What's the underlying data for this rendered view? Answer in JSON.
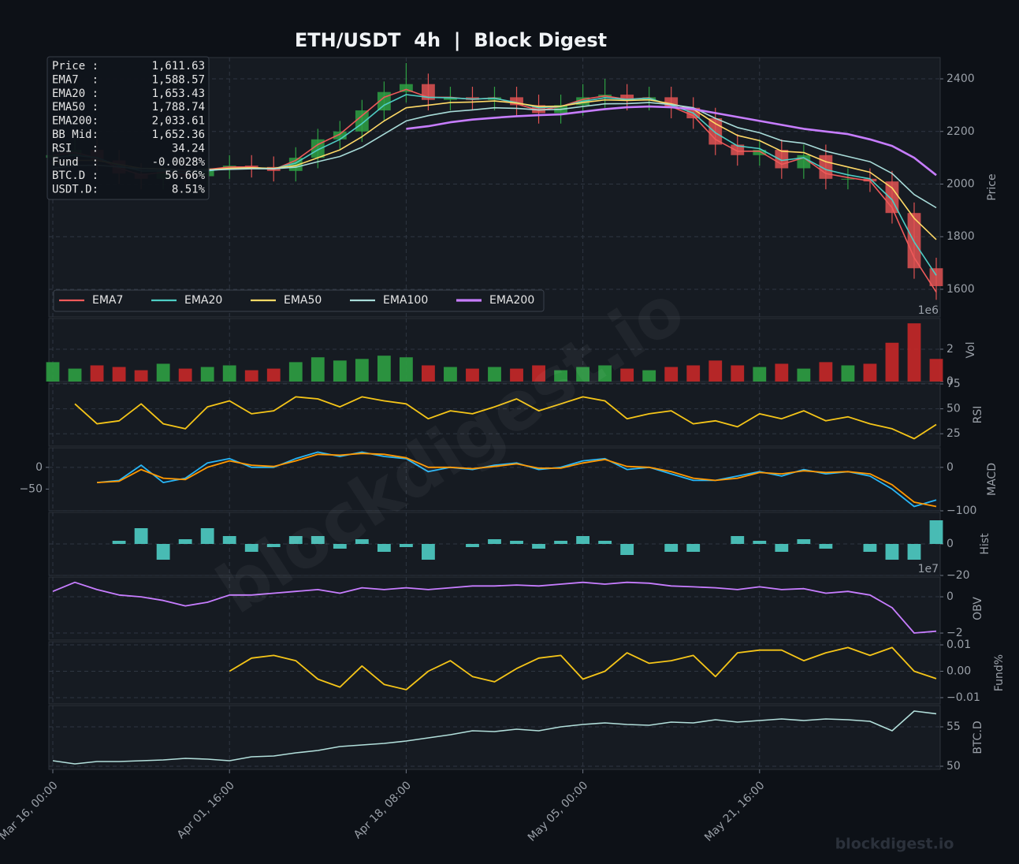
{
  "title": "ETH/USDT  4h  |  Block Digest",
  "watermark": "blockdigest.io",
  "footer": "blockdigest.io",
  "info_box": [
    {
      "label": "Price :",
      "value": "1,611.63"
    },
    {
      "label": "EMA7  :",
      "value": "1,588.57"
    },
    {
      "label": "EMA20 :",
      "value": "1,653.43"
    },
    {
      "label": "EMA50 :",
      "value": "1,788.74"
    },
    {
      "label": "EMA200:",
      "value": "2,033.61"
    },
    {
      "label": "BB Mid:",
      "value": "1,652.36"
    },
    {
      "label": "RSI   :",
      "value": "34.24"
    },
    {
      "label": "Fund  :",
      "value": "-0.0028%"
    },
    {
      "label": "BTC.D :",
      "value": "56.66%"
    },
    {
      "label": "USDT.D:",
      "value": "8.51%"
    }
  ],
  "chart_data": [
    {
      "type": "candlestick",
      "ylabel": "Price",
      "x": [
        "Mar 16, 00:00",
        "Mar 18, 02:00",
        "Mar 20, 04:00",
        "Mar 22, 06:00",
        "Mar 24, 08:00",
        "Mar 26, 10:00",
        "Mar 28, 12:00",
        "Mar 30, 14:00",
        "Apr 01, 16:00",
        "Apr 03, 18:00",
        "Apr 05, 20:00",
        "Apr 07, 22:00",
        "Apr 10, 00:00",
        "Apr 12, 02:00",
        "Apr 14, 04:00",
        "Apr 16, 06:00",
        "Apr 18, 08:00",
        "Apr 20, 10:00",
        "Apr 22, 12:00",
        "Apr 24, 14:00",
        "Apr 26, 16:00",
        "Apr 28, 18:00",
        "Apr 30, 20:00",
        "May 02, 22:00",
        "May 05, 00:00",
        "May 07, 02:00",
        "May 09, 04:00",
        "May 11, 06:00",
        "May 13, 08:00",
        "May 15, 10:00",
        "May 17, 12:00",
        "May 19, 14:00",
        "May 21, 16:00",
        "May 23, 18:00",
        "May 25, 20:00",
        "May 27, 22:00",
        "May 30, 00:00",
        "Jun 01, 02:00",
        "Jun 03, 04:00",
        "Jun 05, 06:00",
        "Jun 07, 08:00"
      ],
      "xticks": [
        "Mar 16, 00:00",
        "Apr 01, 16:00",
        "Apr 18, 08:00",
        "May 05, 00:00",
        "May 21, 16:00"
      ],
      "ylim": [
        1495,
        2481
      ],
      "yticks": [
        1600,
        1800,
        2000,
        2200,
        2400
      ],
      "grid": true,
      "up_color": "#2ea043",
      "down_color": "#e05252",
      "legend": "lower left",
      "candles": {
        "open": [
          2100,
          2110,
          2130,
          2090,
          2040,
          2020,
          2050,
          2030,
          2060,
          2070,
          2065,
          2050,
          2100,
          2170,
          2200,
          2280,
          2350,
          2380,
          2320,
          2330,
          2320,
          2330,
          2300,
          2270,
          2300,
          2330,
          2340,
          2320,
          2330,
          2290,
          2250,
          2150,
          2110,
          2130,
          2060,
          2110,
          2020,
          2020,
          2010,
          1890,
          1680
        ],
        "high": [
          2150,
          2170,
          2170,
          2130,
          2080,
          2090,
          2090,
          2100,
          2110,
          2110,
          2105,
          2140,
          2210,
          2240,
          2320,
          2390,
          2460,
          2420,
          2370,
          2370,
          2370,
          2370,
          2340,
          2340,
          2380,
          2400,
          2380,
          2370,
          2370,
          2330,
          2290,
          2190,
          2170,
          2170,
          2150,
          2150,
          2060,
          2060,
          2050,
          1930,
          1720
        ],
        "low": [
          2060,
          2070,
          2050,
          2000,
          1980,
          1980,
          1990,
          1990,
          2020,
          2025,
          2010,
          2010,
          2060,
          2130,
          2160,
          2240,
          2310,
          2280,
          2280,
          2280,
          2280,
          2260,
          2230,
          2230,
          2260,
          2290,
          2280,
          2280,
          2250,
          2210,
          2110,
          2070,
          2070,
          2020,
          2020,
          1980,
          1980,
          1970,
          1850,
          1640,
          1560
        ],
        "close": [
          2110,
          2130,
          2090,
          2040,
          2020,
          2050,
          2030,
          2060,
          2070,
          2065,
          2050,
          2100,
          2170,
          2200,
          2280,
          2350,
          2380,
          2320,
          2330,
          2320,
          2330,
          2300,
          2270,
          2300,
          2330,
          2340,
          2320,
          2330,
          2290,
          2250,
          2150,
          2110,
          2130,
          2060,
          2110,
          2020,
          2020,
          2010,
          1890,
          1680,
          1612
        ]
      },
      "series": [
        {
          "name": "EMA7",
          "color": "#ef5a5a",
          "line_width": 1.6,
          "values": [
            2110,
            2120,
            2100,
            2060,
            2035,
            2045,
            2038,
            2055,
            2065,
            2065,
            2055,
            2090,
            2150,
            2190,
            2260,
            2330,
            2360,
            2330,
            2330,
            2322,
            2328,
            2305,
            2280,
            2295,
            2322,
            2335,
            2322,
            2328,
            2295,
            2260,
            2170,
            2125,
            2125,
            2075,
            2100,
            2040,
            2025,
            2012,
            1910,
            1720,
            1589
          ]
        },
        {
          "name": "EMA20",
          "color": "#4ecdc4",
          "line_width": 1.6,
          "values": [
            2100,
            2110,
            2100,
            2070,
            2050,
            2050,
            2042,
            2050,
            2060,
            2062,
            2058,
            2080,
            2130,
            2170,
            2230,
            2300,
            2340,
            2330,
            2328,
            2323,
            2326,
            2310,
            2290,
            2295,
            2315,
            2328,
            2322,
            2326,
            2300,
            2270,
            2195,
            2145,
            2135,
            2090,
            2100,
            2055,
            2035,
            2020,
            1940,
            1780,
            1653
          ]
        },
        {
          "name": "EMA50",
          "color": "#ffd966",
          "line_width": 1.6,
          "values": [
            2080,
            2090,
            2090,
            2075,
            2060,
            2058,
            2052,
            2054,
            2060,
            2062,
            2060,
            2070,
            2100,
            2130,
            2180,
            2240,
            2290,
            2300,
            2310,
            2312,
            2316,
            2308,
            2295,
            2296,
            2310,
            2320,
            2318,
            2320,
            2305,
            2285,
            2230,
            2185,
            2165,
            2125,
            2120,
            2085,
            2065,
            2045,
            1985,
            1870,
            1789
          ]
        },
        {
          "name": "EMA100",
          "color": "#a8dcd9",
          "line_width": 1.6,
          "values": [
            2060,
            2070,
            2072,
            2065,
            2058,
            2056,
            2052,
            2053,
            2056,
            2058,
            2058,
            2064,
            2085,
            2105,
            2140,
            2190,
            2240,
            2260,
            2275,
            2282,
            2290,
            2288,
            2282,
            2284,
            2295,
            2305,
            2306,
            2310,
            2302,
            2290,
            2250,
            2215,
            2195,
            2165,
            2155,
            2125,
            2105,
            2085,
            2040,
            1960,
            1910
          ]
        },
        {
          "name": "EMA200",
          "color": "#c77dff",
          "line_width": 2.6,
          "values": [
            null,
            null,
            null,
            null,
            null,
            null,
            null,
            null,
            null,
            null,
            null,
            null,
            null,
            null,
            null,
            null,
            2210,
            2220,
            2235,
            2245,
            2252,
            2258,
            2262,
            2265,
            2275,
            2285,
            2292,
            2295,
            2292,
            2285,
            2270,
            2255,
            2240,
            2225,
            2210,
            2200,
            2190,
            2170,
            2145,
            2100,
            2034
          ]
        }
      ]
    },
    {
      "type": "bar",
      "ylabel": "Vol",
      "offset_label": "1e6",
      "ylim": [
        0,
        3.9
      ],
      "yticks": [
        0,
        2
      ],
      "grid": true,
      "up_color": "#2ea043",
      "down_color": "#c62828",
      "values": [
        1.2,
        0.8,
        1.0,
        0.9,
        0.7,
        1.1,
        0.8,
        0.9,
        1.0,
        0.7,
        0.8,
        1.2,
        1.5,
        1.3,
        1.4,
        1.6,
        1.5,
        1.0,
        0.9,
        0.8,
        0.9,
        0.8,
        1.0,
        0.7,
        0.9,
        1.0,
        0.8,
        0.7,
        0.9,
        1.0,
        1.3,
        1.0,
        0.9,
        1.1,
        0.8,
        1.2,
        1.0,
        1.1,
        2.4,
        3.6,
        1.4
      ]
    },
    {
      "type": "line",
      "ylabel": "RSI",
      "ylim": [
        12.5,
        75.8
      ],
      "yticks": [
        25,
        50,
        75
      ],
      "grid": true,
      "series": [
        {
          "color": "#f5c518",
          "line_width": 1.8,
          "values": [
            null,
            55,
            35,
            38,
            55,
            35,
            30,
            52,
            58,
            45,
            48,
            62,
            60,
            52,
            62,
            58,
            55,
            40,
            48,
            45,
            52,
            60,
            48,
            55,
            62,
            58,
            40,
            45,
            48,
            35,
            38,
            32,
            45,
            40,
            48,
            38,
            42,
            35,
            30,
            20,
            34.24
          ]
        }
      ]
    },
    {
      "type": "line",
      "ylabel": "MACD",
      "ylim": [
        -100,
        45
      ],
      "yticks": [
        {
          "value": -100,
          "label": "−100"
        },
        0
      ],
      "yticks_left": [
        {
          "value": -50,
          "label": "−50"
        },
        0
      ],
      "grid": true,
      "series": [
        {
          "color": "#29b6f6",
          "line_width": 1.8,
          "values": [
            null,
            null,
            -35,
            -30,
            5,
            -35,
            -25,
            10,
            20,
            0,
            0,
            20,
            35,
            25,
            35,
            25,
            20,
            -10,
            0,
            -5,
            5,
            10,
            -5,
            0,
            15,
            20,
            -5,
            0,
            -15,
            -30,
            -30,
            -20,
            -10,
            -20,
            -5,
            -15,
            -10,
            -20,
            -50,
            -90,
            -75
          ]
        },
        {
          "color": "#ff9800",
          "line_width": 1.8,
          "values": [
            null,
            null,
            -35,
            -32,
            -5,
            -25,
            -28,
            0,
            15,
            5,
            2,
            15,
            30,
            28,
            32,
            30,
            22,
            0,
            0,
            -3,
            2,
            8,
            -2,
            -2,
            10,
            18,
            2,
            0,
            -10,
            -25,
            -30,
            -25,
            -12,
            -15,
            -8,
            -12,
            -10,
            -15,
            -40,
            -80,
            -90
          ]
        }
      ]
    },
    {
      "type": "bar",
      "ylabel": "Hist",
      "ylim": [
        -20,
        20
      ],
      "yticks": [
        {
          "value": -20,
          "label": "−20"
        },
        0
      ],
      "grid": true,
      "color": "#4ecdc4",
      "values": [
        null,
        null,
        null,
        2,
        10,
        -10,
        3,
        10,
        5,
        -5,
        -2,
        5,
        5,
        -3,
        3,
        -5,
        -2,
        -10,
        0,
        -2,
        3,
        2,
        -3,
        2,
        5,
        2,
        -7,
        0,
        -5,
        -5,
        0,
        5,
        2,
        -5,
        3,
        -3,
        0,
        -5,
        -10,
        -10,
        15
      ]
    },
    {
      "type": "line",
      "ylabel": "OBV",
      "offset_label": "1e7",
      "ylim": [
        -2.39,
        1.09
      ],
      "yticks": [
        {
          "value": -2,
          "label": "−2"
        },
        0
      ],
      "grid": true,
      "series": [
        {
          "color": "#c77dff",
          "line_width": 1.8,
          "values": [
            0.3,
            0.8,
            0.4,
            0.1,
            0,
            -0.2,
            -0.5,
            -0.3,
            0.1,
            0.1,
            0.2,
            0.3,
            0.4,
            0.2,
            0.5,
            0.4,
            0.5,
            0.4,
            0.5,
            0.6,
            0.6,
            0.65,
            0.6,
            0.7,
            0.8,
            0.7,
            0.8,
            0.75,
            0.6,
            0.55,
            0.5,
            0.4,
            0.55,
            0.4,
            0.45,
            0.2,
            0.3,
            0.1,
            -0.6,
            -2.0,
            -1.9
          ]
        }
      ]
    },
    {
      "type": "line",
      "ylabel": "Fund%",
      "ylim": [
        -0.0124,
        0.0112
      ],
      "yticks": [
        {
          "value": -0.01,
          "label": "−0.01"
        },
        {
          "value": 0,
          "label": "0.00"
        },
        0.01
      ],
      "grid": true,
      "series": [
        {
          "color": "#f5c518",
          "line_width": 1.8,
          "values": [
            null,
            null,
            null,
            null,
            null,
            null,
            null,
            null,
            0.0,
            0.005,
            0.006,
            0.004,
            -0.003,
            -0.006,
            0.002,
            -0.005,
            -0.007,
            0.0,
            0.004,
            -0.002,
            -0.004,
            0.001,
            0.005,
            0.006,
            -0.003,
            0.0,
            0.007,
            0.003,
            0.004,
            0.006,
            -0.002,
            0.007,
            0.008,
            0.008,
            0.004,
            0.007,
            0.009,
            0.006,
            0.009,
            0.0,
            -0.0028
          ]
        }
      ]
    },
    {
      "type": "line",
      "ylabel": "BTC.D",
      "ylim": [
        49.6,
        57.7
      ],
      "yticks": [
        50,
        55
      ],
      "grid": true,
      "series": [
        {
          "color": "#b2dfdb",
          "line_width": 1.6,
          "values": [
            50.7,
            50.3,
            50.6,
            50.6,
            50.7,
            50.8,
            51.0,
            50.9,
            50.7,
            51.2,
            51.3,
            51.7,
            52.0,
            52.5,
            52.7,
            52.9,
            53.2,
            53.6,
            54.0,
            54.5,
            54.4,
            54.7,
            54.5,
            55.0,
            55.3,
            55.5,
            55.3,
            55.2,
            55.6,
            55.5,
            55.9,
            55.6,
            55.8,
            56.0,
            55.8,
            56.0,
            55.9,
            55.7,
            54.5,
            57.0,
            56.66
          ]
        }
      ]
    }
  ]
}
